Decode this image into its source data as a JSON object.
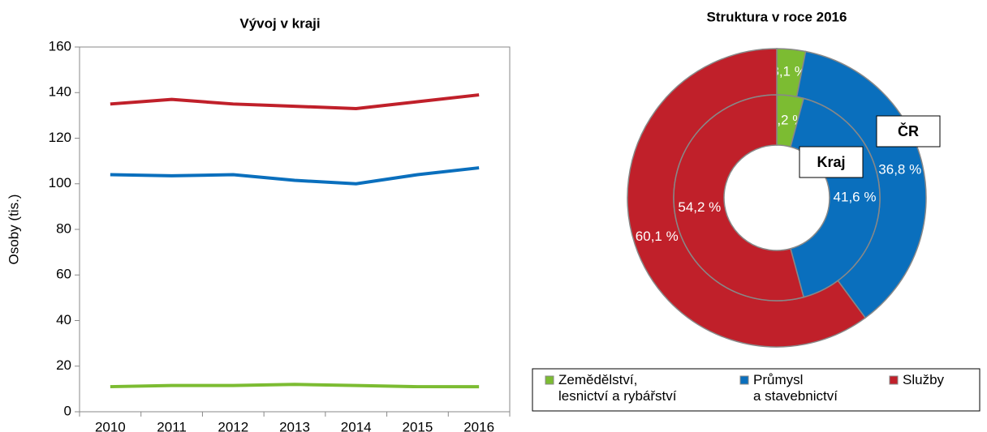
{
  "chart_data": [
    {
      "type": "line",
      "title": "Vývoj v kraji",
      "ylabel": "Osoby (tis.)",
      "categories": [
        "2010",
        "2011",
        "2012",
        "2013",
        "2014",
        "2015",
        "2016"
      ],
      "series": [
        {
          "color": "#7cbc32",
          "values": [
            11,
            11.5,
            11.5,
            12,
            11.5,
            11,
            11
          ]
        },
        {
          "color": "#0a6fbd",
          "values": [
            104,
            103.5,
            104,
            101.5,
            100,
            104,
            107
          ]
        },
        {
          "color": "#c0202a",
          "values": [
            135,
            137,
            135,
            134,
            133,
            136,
            139
          ]
        }
      ],
      "ylim": [
        0,
        160
      ],
      "yticks": [
        0,
        20,
        40,
        60,
        80,
        100,
        120,
        140,
        160
      ]
    },
    {
      "type": "donut",
      "title": "Struktura v roce 2016",
      "categories": [
        "Zemědělství,\nlesnictví a rybářství",
        "Průmysl\na stavebnictví",
        "Služby"
      ],
      "colors": [
        "#7cbc32",
        "#0a6fbd",
        "#c0202a"
      ],
      "legend": "bottom",
      "rings": [
        {
          "name": "ČR",
          "values": [
            3.1,
            36.8,
            60.1
          ],
          "value_labels": [
            "3,1 %",
            "36,8 %",
            "60,1 %"
          ]
        },
        {
          "name": "Kraj",
          "values": [
            4.2,
            41.6,
            54.2
          ],
          "value_labels": [
            "4,2 %",
            "41,6 %",
            "54,2 %"
          ]
        }
      ]
    }
  ]
}
